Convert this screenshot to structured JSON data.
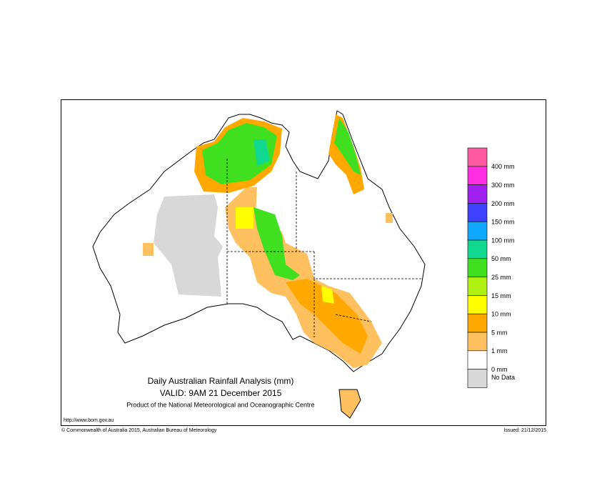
{
  "header": {
    "title": "Daily Australian Rainfall Analysis (mm)",
    "valid": "VALID: 9AM 21 December 2015",
    "product": "Product of the National Meteorological and Oceanographic Centre"
  },
  "footer": {
    "url": "http://www.bom.gov.au",
    "copyright": "© Commonwealth of Australia 2015, Australian Bureau of Meteorology",
    "issued": "Issued: 21/12/2015"
  },
  "legend": {
    "colors": [
      "#ff5aa0",
      "#ff2ee0",
      "#a020f0",
      "#4040ff",
      "#10a8ff",
      "#10d890",
      "#40e020",
      "#b0f010",
      "#ffff00",
      "#ffa800",
      "#ffc060",
      "#ffffff",
      "#d8d8d8"
    ],
    "labels": [
      "400 mm",
      "300 mm",
      "200 mm",
      "150 mm",
      "100 mm",
      "50 mm",
      "25 mm",
      "15 mm",
      "10 mm",
      "5 mm",
      "1 mm",
      "0 mm",
      "No Data"
    ]
  }
}
